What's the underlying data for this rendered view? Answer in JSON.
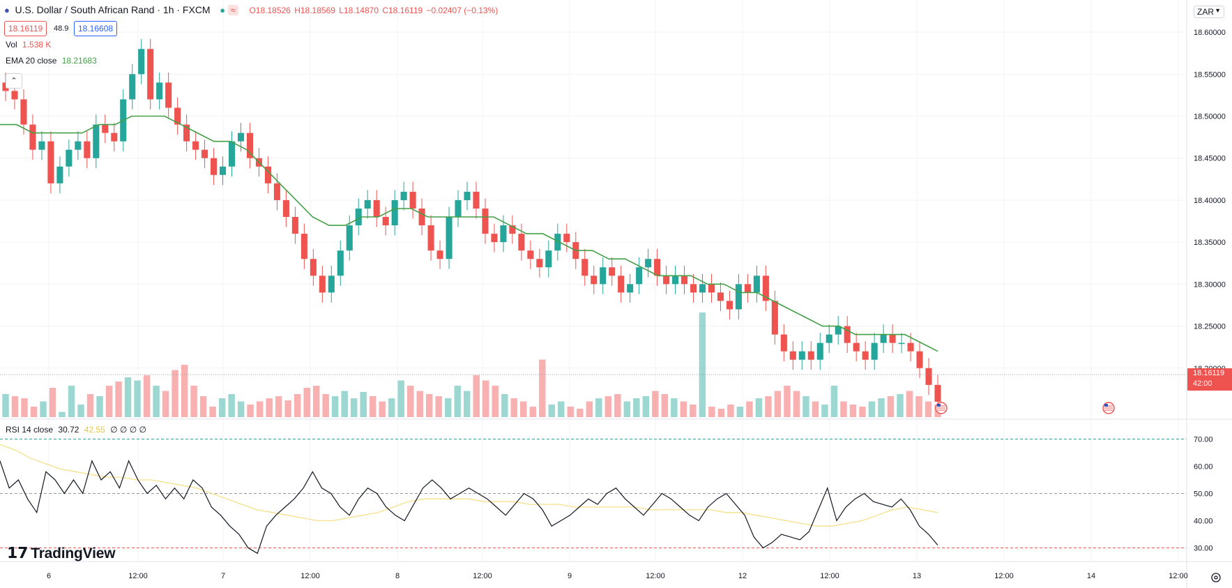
{
  "header": {
    "title": "U.S. Dollar / South African Rand · 1h · FXCM",
    "open": "O18.18526",
    "high": "H18.18569",
    "low": "L18.14870",
    "close": "C18.16119",
    "change": "−0.02407 (−0.13%)",
    "bid": "18.16119",
    "spread": "48.9",
    "ask": "18.16608",
    "vol_label": "Vol",
    "vol_value": "1.538 K",
    "ema_label": "EMA 20 close",
    "ema_value": "18.21683",
    "rsi_label": "RSI 14 close",
    "rsi_value": "30.72",
    "rsi_ma_value": "42.55",
    "rsi_extra": "∅ ∅ ∅ ∅",
    "currency": "ZAR",
    "current_price": "18.16119",
    "countdown": "42:00",
    "logo": "TradingView"
  },
  "colors": {
    "up": "#26a69a",
    "down": "#ef5350",
    "ema": "#43a047",
    "rsi": "#131722",
    "rsi_ma": "#f5e08a",
    "grid": "#f0f3fa"
  },
  "chart_data": {
    "type": "candlestick",
    "title": "U.S. Dollar / South African Rand · 1h · FXCM",
    "price_axis": {
      "ticks": [
        18.6,
        18.55,
        18.5,
        18.45,
        18.4,
        18.35,
        18.3,
        18.25,
        18.2
      ],
      "labels": [
        "18.60000",
        "18.55000",
        "18.50000",
        "18.45000",
        "18.40000",
        "18.35000",
        "18.30000",
        "18.25000",
        "18.20000"
      ]
    },
    "time_axis": {
      "labels": [
        "6",
        "12:00",
        "7",
        "12:00",
        "8",
        "12:00",
        "9",
        "12:00",
        "12",
        "12:00",
        "13",
        "12:00",
        "14",
        "12:00"
      ]
    },
    "rsi_axis": {
      "ticks": [
        70,
        60,
        50,
        40,
        30
      ],
      "labels": [
        "70.00",
        "60.00",
        "50.00",
        "40.00",
        "30.00"
      ]
    },
    "ohlc_close": [
      18.53,
      18.52,
      18.49,
      18.46,
      18.47,
      18.42,
      18.44,
      18.46,
      18.47,
      18.45,
      18.49,
      18.48,
      18.47,
      18.52,
      18.55,
      18.58,
      18.52,
      18.54,
      18.51,
      18.49,
      18.47,
      18.46,
      18.45,
      18.43,
      18.44,
      18.47,
      18.48,
      18.45,
      18.44,
      18.42,
      18.4,
      18.38,
      18.36,
      18.33,
      18.31,
      18.29,
      18.31,
      18.34,
      18.37,
      18.39,
      18.4,
      18.38,
      18.37,
      18.4,
      18.41,
      18.39,
      18.37,
      18.34,
      18.33,
      18.38,
      18.4,
      18.41,
      18.39,
      18.36,
      18.35,
      18.37,
      18.36,
      18.34,
      18.33,
      18.32,
      18.34,
      18.36,
      18.35,
      18.33,
      18.31,
      18.3,
      18.32,
      18.31,
      18.29,
      18.3,
      18.32,
      18.33,
      18.31,
      18.3,
      18.31,
      18.3,
      18.29,
      18.3,
      18.29,
      18.28,
      18.27,
      18.3,
      18.29,
      18.31,
      18.28,
      18.24,
      18.22,
      18.21,
      18.22,
      18.21,
      18.23,
      18.24,
      18.25,
      18.23,
      18.22,
      18.21,
      18.23,
      18.24,
      18.23,
      18.23,
      18.22,
      18.2,
      18.18,
      18.16
    ],
    "ema20": [
      18.49,
      18.49,
      18.48,
      18.48,
      18.48,
      18.48,
      18.49,
      18.49,
      18.5,
      18.5,
      18.5,
      18.49,
      18.48,
      18.47,
      18.47,
      18.46,
      18.44,
      18.42,
      18.4,
      18.38,
      18.37,
      18.37,
      18.38,
      18.38,
      18.39,
      18.39,
      18.38,
      18.38,
      18.38,
      18.38,
      18.38,
      18.37,
      18.36,
      18.36,
      18.35,
      18.34,
      18.34,
      18.33,
      18.33,
      18.32,
      18.31,
      18.31,
      18.31,
      18.3,
      18.3,
      18.29,
      18.29,
      18.28,
      18.27,
      18.26,
      18.25,
      18.25,
      18.24,
      18.24,
      18.24,
      18.24,
      18.23,
      18.22
    ],
    "volume": [
      0.22,
      0.2,
      0.18,
      0.1,
      0.15,
      0.28,
      0.05,
      0.3,
      0.12,
      0.22,
      0.2,
      0.3,
      0.34,
      0.38,
      0.35,
      0.4,
      0.3,
      0.25,
      0.45,
      0.5,
      0.3,
      0.2,
      0.1,
      0.18,
      0.22,
      0.15,
      0.12,
      0.15,
      0.18,
      0.2,
      0.16,
      0.22,
      0.28,
      0.3,
      0.22,
      0.2,
      0.25,
      0.18,
      0.24,
      0.2,
      0.15,
      0.18,
      0.35,
      0.3,
      0.25,
      0.22,
      0.2,
      0.18,
      0.3,
      0.25,
      0.4,
      0.35,
      0.3,
      0.22,
      0.18,
      0.15,
      0.1,
      0.55,
      0.12,
      0.15,
      0.1,
      0.08,
      0.15,
      0.18,
      0.2,
      0.22,
      0.15,
      0.18,
      0.2,
      0.25,
      0.22,
      0.18,
      0.15,
      0.12,
      1.0,
      0.1,
      0.08,
      0.12,
      0.1,
      0.15,
      0.18,
      0.2,
      0.25,
      0.3,
      0.25,
      0.2,
      0.15,
      0.12,
      0.3,
      0.15,
      0.12,
      0.1,
      0.15,
      0.18,
      0.2,
      0.22,
      0.25,
      0.2,
      0.15,
      0.12
    ],
    "rsi": [
      62,
      52,
      55,
      48,
      43,
      58,
      55,
      50,
      55,
      50,
      62,
      55,
      58,
      52,
      62,
      55,
      50,
      53,
      48,
      52,
      48,
      55,
      52,
      45,
      42,
      38,
      35,
      30,
      28,
      38,
      42,
      45,
      48,
      52,
      58,
      52,
      50,
      45,
      42,
      48,
      52,
      50,
      45,
      42,
      40,
      46,
      52,
      55,
      52,
      48,
      50,
      52,
      50,
      48,
      45,
      42,
      46,
      50,
      48,
      44,
      38,
      40,
      42,
      45,
      48,
      46,
      50,
      52,
      48,
      45,
      42,
      46,
      50,
      48,
      45,
      42,
      40,
      45,
      48,
      50,
      46,
      42,
      34,
      30,
      32,
      35,
      34,
      33,
      36,
      44,
      52,
      40,
      45,
      48,
      50,
      47,
      46,
      45,
      48,
      44,
      38,
      35,
      31
    ],
    "rsi_ma": [
      68,
      66,
      63,
      61,
      59,
      58,
      57,
      56,
      56,
      55,
      55,
      54,
      53,
      52,
      50,
      48,
      46,
      44,
      43,
      42,
      41,
      40,
      40,
      41,
      42,
      43,
      45,
      47,
      48,
      48,
      48,
      48,
      47,
      47,
      47,
      46,
      46,
      46,
      45,
      45,
      45,
      45,
      45,
      44,
      44,
      44,
      44,
      44,
      43,
      43,
      42,
      41,
      40,
      39,
      38,
      38,
      39,
      40,
      42,
      44,
      45,
      44,
      43
    ]
  }
}
